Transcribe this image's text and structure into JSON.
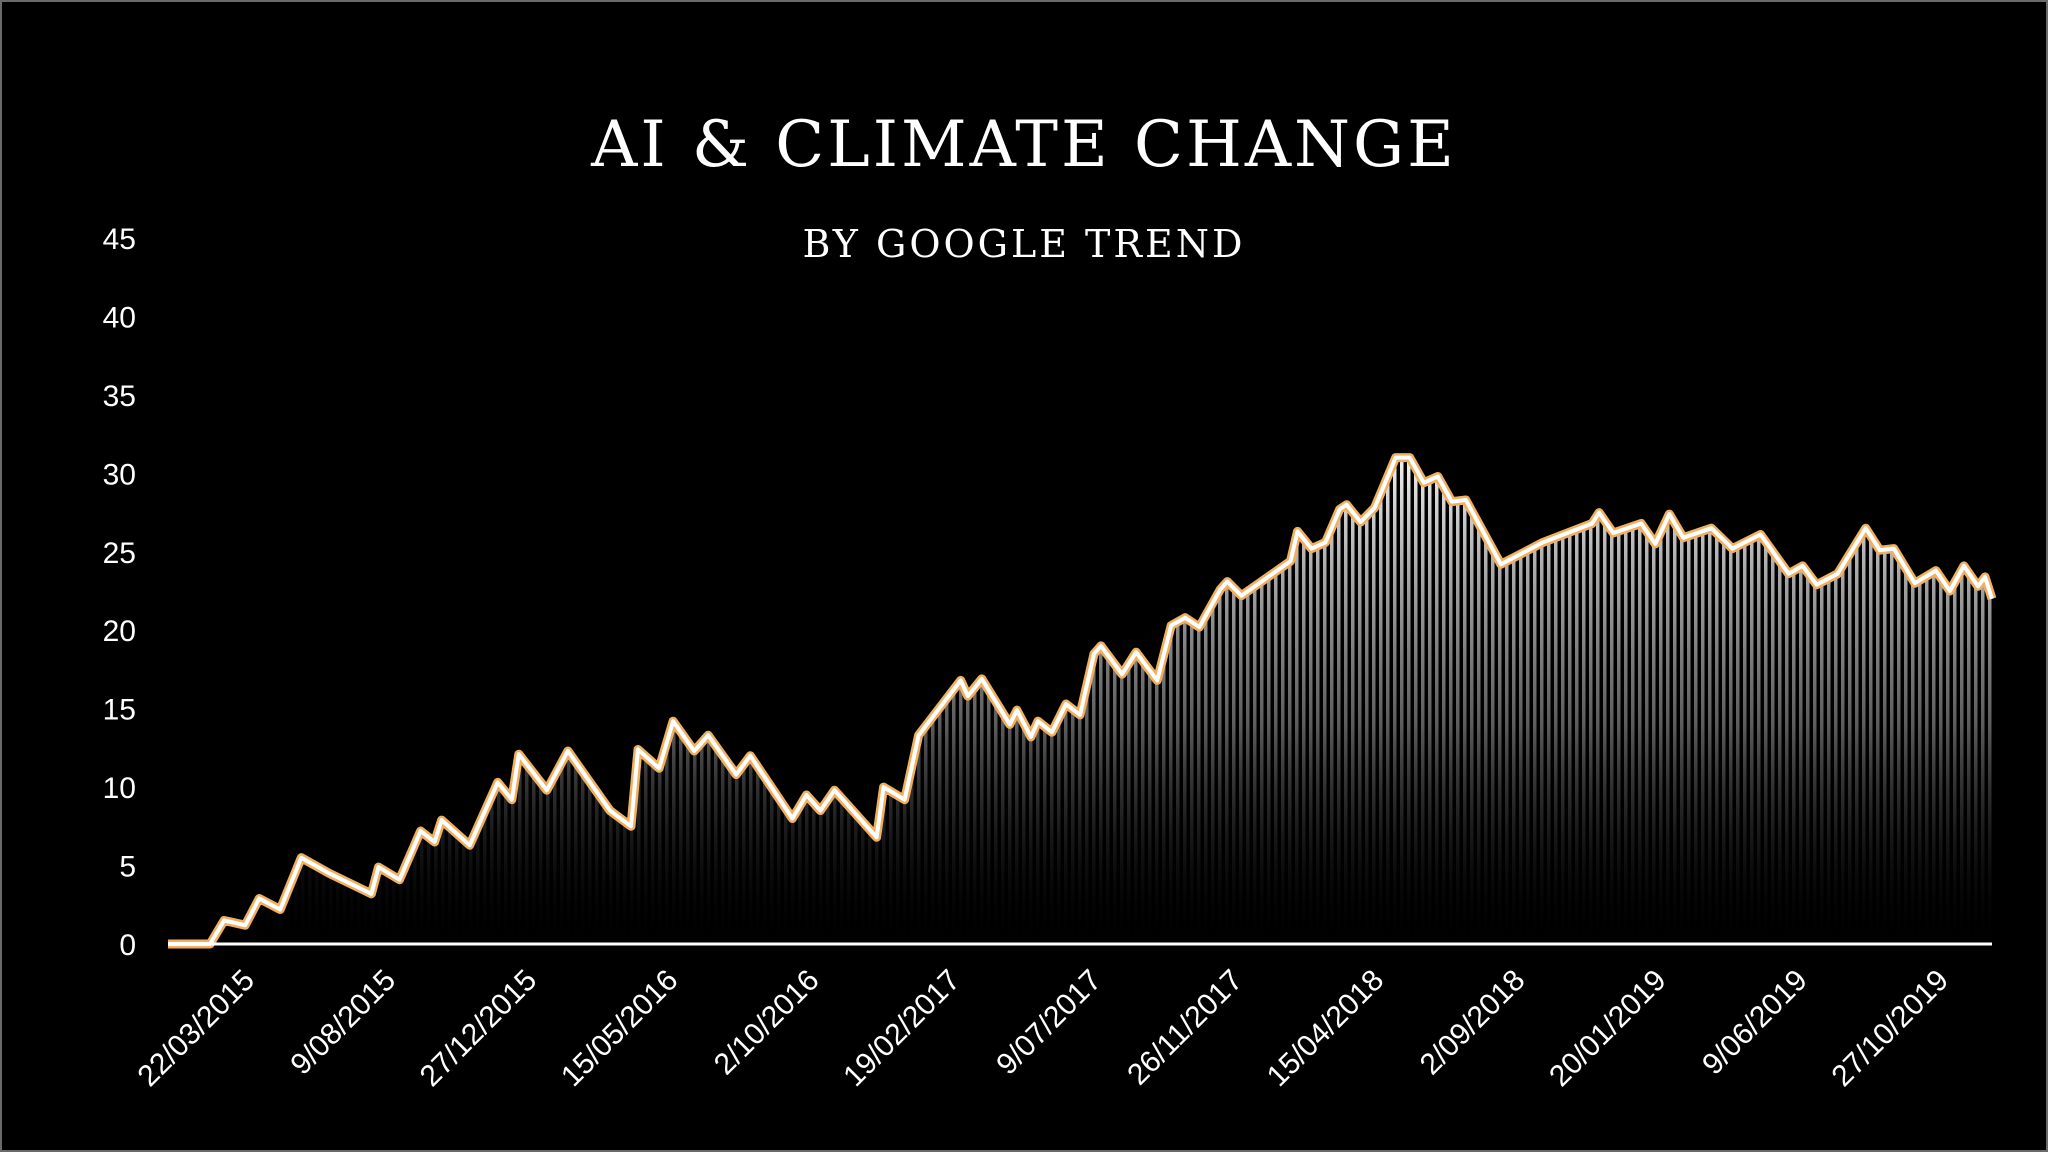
{
  "chart_data": {
    "type": "area",
    "title": "AI & CLIMATE CHANGE",
    "subtitle": "BY GOOGLE TREND",
    "xlabel": "",
    "ylabel": "",
    "ylim": [
      0,
      45
    ],
    "yticks": [
      0,
      5,
      10,
      15,
      20,
      25,
      30,
      35,
      40,
      45
    ],
    "grid": false,
    "legend": "none",
    "colors": {
      "background": "#000000",
      "fill_top": "#ffffff",
      "line": "#ffffff",
      "line_glow": "#f0b060",
      "axis": "#ffffff"
    },
    "xtick_labels": [
      "22/03/2015",
      "9/08/2015",
      "27/12/2015",
      "15/05/2016",
      "2/10/2016",
      "19/02/2017",
      "9/07/2017",
      "26/11/2017",
      "15/04/2018",
      "2/09/2018",
      "20/01/2019",
      "9/06/2019",
      "27/10/2019"
    ],
    "x_start": "2015-01-04",
    "x_end": "2019-12-29",
    "series": [
      {
        "points": [
          [
            "2015-01-04",
            0
          ],
          [
            "2015-02-15",
            0
          ],
          [
            "2015-03-01",
            1.5
          ],
          [
            "2015-03-22",
            1.2
          ],
          [
            "2015-04-05",
            2.9
          ],
          [
            "2015-04-26",
            2.2
          ],
          [
            "2015-05-17",
            5.5
          ],
          [
            "2015-06-14",
            4.5
          ],
          [
            "2015-07-26",
            3.2
          ],
          [
            "2015-08-02",
            4.9
          ],
          [
            "2015-08-23",
            4.1
          ],
          [
            "2015-09-13",
            7.2
          ],
          [
            "2015-09-27",
            6.5
          ],
          [
            "2015-10-04",
            7.9
          ],
          [
            "2015-11-01",
            6.3
          ],
          [
            "2015-11-29",
            10.3
          ],
          [
            "2015-12-13",
            9.2
          ],
          [
            "2015-12-20",
            12.1
          ],
          [
            "2016-01-17",
            9.8
          ],
          [
            "2016-02-07",
            12.3
          ],
          [
            "2016-03-20",
            8.5
          ],
          [
            "2016-04-10",
            7.5
          ],
          [
            "2016-04-17",
            12.4
          ],
          [
            "2016-05-08",
            11.2
          ],
          [
            "2016-05-22",
            14.2
          ],
          [
            "2016-06-12",
            12.3
          ],
          [
            "2016-06-26",
            13.3
          ],
          [
            "2016-07-24",
            10.8
          ],
          [
            "2016-08-07",
            12.0
          ],
          [
            "2016-09-18",
            8.0
          ],
          [
            "2016-10-02",
            9.5
          ],
          [
            "2016-10-16",
            8.5
          ],
          [
            "2016-10-30",
            9.8
          ],
          [
            "2016-12-11",
            6.8
          ],
          [
            "2016-12-18",
            10.0
          ],
          [
            "2017-01-08",
            9.2
          ],
          [
            "2017-01-22",
            13.3
          ],
          [
            "2017-03-05",
            16.8
          ],
          [
            "2017-03-12",
            15.8
          ],
          [
            "2017-03-26",
            16.9
          ],
          [
            "2017-04-23",
            14.0
          ],
          [
            "2017-04-30",
            14.9
          ],
          [
            "2017-05-14",
            13.2
          ],
          [
            "2017-05-21",
            14.2
          ],
          [
            "2017-06-04",
            13.5
          ],
          [
            "2017-06-18",
            15.3
          ],
          [
            "2017-07-02",
            14.6
          ],
          [
            "2017-07-16",
            18.5
          ],
          [
            "2017-07-23",
            19.0
          ],
          [
            "2017-08-13",
            17.2
          ],
          [
            "2017-08-27",
            18.6
          ],
          [
            "2017-09-17",
            16.8
          ],
          [
            "2017-10-01",
            20.3
          ],
          [
            "2017-10-15",
            20.8
          ],
          [
            "2017-10-29",
            20.2
          ],
          [
            "2017-11-19",
            22.6
          ],
          [
            "2017-11-26",
            23.1
          ],
          [
            "2017-12-10",
            22.2
          ],
          [
            "2018-01-28",
            24.4
          ],
          [
            "2018-02-04",
            26.3
          ],
          [
            "2018-02-18",
            25.2
          ],
          [
            "2018-03-04",
            25.6
          ],
          [
            "2018-03-18",
            27.7
          ],
          [
            "2018-03-25",
            28.0
          ],
          [
            "2018-04-08",
            26.9
          ],
          [
            "2018-04-22",
            27.8
          ],
          [
            "2018-05-13",
            31.0
          ],
          [
            "2018-05-27",
            31.0
          ],
          [
            "2018-06-10",
            29.4
          ],
          [
            "2018-06-24",
            29.8
          ],
          [
            "2018-07-08",
            28.2
          ],
          [
            "2018-07-22",
            28.3
          ],
          [
            "2018-08-26",
            24.2
          ],
          [
            "2018-10-07",
            25.6
          ],
          [
            "2018-11-25",
            26.8
          ],
          [
            "2018-12-02",
            27.5
          ],
          [
            "2018-12-16",
            26.2
          ],
          [
            "2019-01-13",
            26.8
          ],
          [
            "2019-01-27",
            25.5
          ],
          [
            "2019-02-10",
            27.4
          ],
          [
            "2019-02-24",
            25.9
          ],
          [
            "2019-03-24",
            26.5
          ],
          [
            "2019-04-14",
            25.2
          ],
          [
            "2019-05-12",
            26.1
          ],
          [
            "2019-06-09",
            23.6
          ],
          [
            "2019-06-23",
            24.1
          ],
          [
            "2019-07-07",
            22.9
          ],
          [
            "2019-07-28",
            23.6
          ],
          [
            "2019-08-25",
            26.5
          ],
          [
            "2019-09-08",
            25.1
          ],
          [
            "2019-09-22",
            25.2
          ],
          [
            "2019-10-13",
            23.0
          ],
          [
            "2019-11-03",
            23.8
          ],
          [
            "2019-11-17",
            22.5
          ],
          [
            "2019-12-01",
            24.1
          ],
          [
            "2019-12-15",
            22.8
          ],
          [
            "2019-12-22",
            23.4
          ],
          [
            "2019-12-29",
            22.0
          ]
        ]
      }
    ]
  }
}
